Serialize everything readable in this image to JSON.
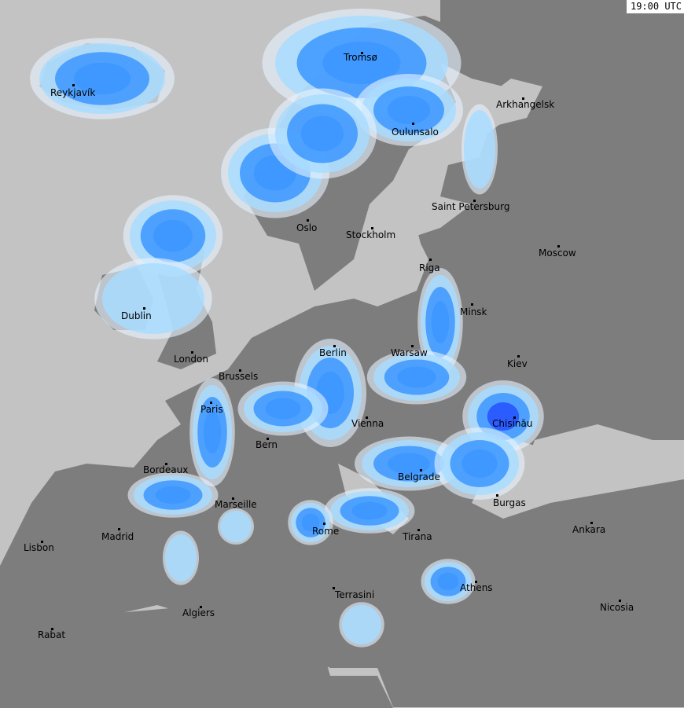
{
  "timestamp": "19:00 UTC",
  "colors": {
    "sea": "#c3c3c3",
    "land": "#7d7d7d",
    "land_light": "#8e8e8e",
    "radar_light": "#a9dcff",
    "radar_mid": "#3c96ff",
    "radar_strong": "#2450ff",
    "radar_extreme": "#b000d0"
  },
  "cities": [
    {
      "name": "Reykjavík"
    },
    {
      "name": "Tromsø"
    },
    {
      "name": "Oulunsalo"
    },
    {
      "name": "Arkhangelsk"
    },
    {
      "name": "Saint Petersburg"
    },
    {
      "name": "Oslo"
    },
    {
      "name": "Stockholm"
    },
    {
      "name": "Moscow"
    },
    {
      "name": "Riga"
    },
    {
      "name": "Dublin"
    },
    {
      "name": "Minsk"
    },
    {
      "name": "London"
    },
    {
      "name": "Berlin"
    },
    {
      "name": "Warsaw"
    },
    {
      "name": "Kiev"
    },
    {
      "name": "Brussels"
    },
    {
      "name": "Paris"
    },
    {
      "name": "Chisinău"
    },
    {
      "name": "Vienna"
    },
    {
      "name": "Bern"
    },
    {
      "name": "Bordeaux"
    },
    {
      "name": "Belgrade"
    },
    {
      "name": "Marseille"
    },
    {
      "name": "Burgas"
    },
    {
      "name": "Rome"
    },
    {
      "name": "Ankara"
    },
    {
      "name": "Madrid"
    },
    {
      "name": "Tirana"
    },
    {
      "name": "Lisbon"
    },
    {
      "name": "Athens"
    },
    {
      "name": "Terrasini"
    },
    {
      "name": "Algiers"
    },
    {
      "name": "Nicosia"
    },
    {
      "name": "Rabat"
    }
  ]
}
